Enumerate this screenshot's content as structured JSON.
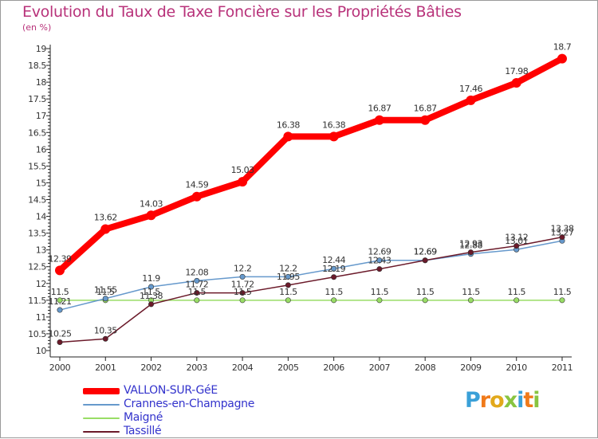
{
  "title": "Evolution du Taux de Taxe Foncière sur les Propriétés Bâties",
  "unit": "(en %)",
  "logo_text": "Proxiti",
  "chart_data": {
    "type": "line",
    "title": "Evolution du Taux de Taxe Foncière sur les Propriétés Bâties",
    "ylabel": "(en %)",
    "xlabel": "",
    "x": [
      "2000",
      "2001",
      "2002",
      "2003",
      "2004",
      "2005",
      "2006",
      "2007",
      "2008",
      "2009",
      "2010",
      "2011"
    ],
    "ylim": [
      10,
      19
    ],
    "yticks": [
      "10",
      "10.5",
      "11",
      "11.5",
      "12",
      "12.5",
      "13",
      "13.5",
      "14",
      "14.5",
      "15",
      "15.5",
      "16",
      "16.5",
      "17",
      "17.5",
      "18",
      "18.5",
      "19"
    ],
    "grid": false,
    "legend_position": "bottom-left",
    "series": [
      {
        "name": "VALLON-SUR-GéE",
        "color": "#ff0000",
        "values": [
          12.39,
          13.62,
          14.03,
          14.59,
          15.03,
          16.38,
          16.38,
          16.87,
          16.87,
          17.46,
          17.98,
          18.7
        ],
        "labels": [
          "12.39",
          "13.62",
          "14.03",
          "14.59",
          "15.03",
          "16.38",
          "16.38",
          "16.87",
          "16.87",
          "17.46",
          "17.98",
          "18.7"
        ]
      },
      {
        "name": "Crannes-en-Champagne",
        "color": "#6699cc",
        "values": [
          11.21,
          11.55,
          11.9,
          12.08,
          12.2,
          12.2,
          12.44,
          12.69,
          12.69,
          12.88,
          13.01,
          13.27
        ],
        "labels": [
          "11.21",
          "11.55",
          "11.9",
          "12.08",
          "12.2",
          "12.2",
          "12.44",
          "12.69",
          "12.69",
          "12.88",
          "13.01",
          "13.27"
        ]
      },
      {
        "name": "Maigné",
        "color": "#99dd66",
        "values": [
          11.5,
          11.5,
          11.5,
          11.5,
          11.5,
          11.5,
          11.5,
          11.5,
          11.5,
          11.5,
          11.5,
          11.5
        ],
        "labels": [
          "11.5",
          "11.5",
          "11.5",
          "11.5",
          "11.5",
          "11.5",
          "11.5",
          "11.5",
          "11.5",
          "11.5",
          "11.5",
          "11.5"
        ]
      },
      {
        "name": "Tassillé",
        "color": "#6b1a2a",
        "values": [
          10.25,
          10.35,
          11.38,
          11.72,
          11.72,
          11.95,
          12.19,
          12.43,
          12.69,
          12.93,
          13.12,
          13.38
        ],
        "labels": [
          "10.25",
          "10.35",
          "11.38",
          "11.72",
          "11.72",
          "11.95",
          "12.19",
          "12.43",
          "12.69",
          "12.93",
          "13.12",
          "13.38"
        ]
      }
    ]
  }
}
